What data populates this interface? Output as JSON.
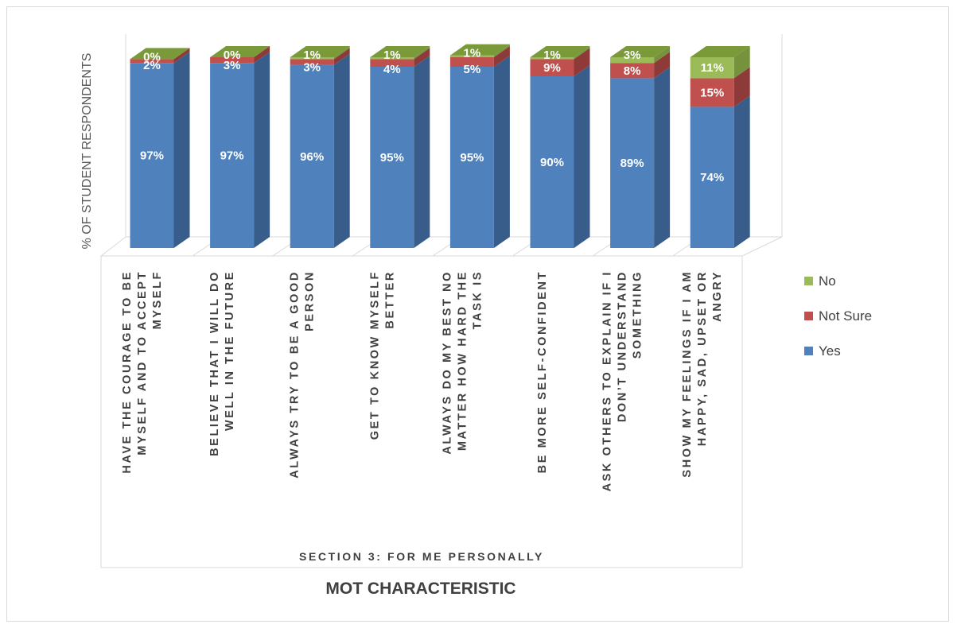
{
  "chart_data": {
    "type": "bar",
    "stacked": true,
    "three_d": true,
    "categories": [
      "HAVE THE COURAGE TO BE MYSELF AND TO ACCEPT MYSELF",
      "BELIEVE THAT I WILL DO WELL IN THE FUTURE",
      "ALWAYS TRY TO BE A GOOD PERSON",
      "GET TO KNOW MYSELF BETTER",
      "ALWAYS DO MY BEST NO MATTER HOW HARD THE TASK IS",
      "BE MORE SELF-CONFIDENT",
      "ASK OTHERS TO EXPLAIN IF I DON’T UNDERSTAND SOMETHING",
      "SHOW MY FEELINGS IF I AM HAPPY, SAD, UPSET OR ANGRY"
    ],
    "category_lines": [
      [
        "HAVE THE COURAGE TO BE",
        "MYSELF AND TO ACCEPT",
        "MYSELF"
      ],
      [
        "BELIEVE THAT I WILL DO",
        "WELL IN THE FUTURE"
      ],
      [
        "ALWAYS TRY TO BE A GOOD",
        "PERSON"
      ],
      [
        "GET TO KNOW MYSELF",
        "BETTER"
      ],
      [
        "ALWAYS DO MY BEST NO",
        "MATTER HOW HARD THE",
        "TASK IS"
      ],
      [
        "BE MORE SELF-CONFIDENT"
      ],
      [
        "ASK OTHERS TO EXPLAIN IF I",
        "DON’T UNDERSTAND",
        "SOMETHING"
      ],
      [
        "SHOW MY FEELINGS IF I AM",
        "HAPPY, SAD, UPSET OR",
        "ANGRY"
      ]
    ],
    "series": [
      {
        "name": "Yes",
        "color": "#4f81bd",
        "side_color": "#385d8a",
        "top_color": "#6f9bd1",
        "values": [
          97,
          97,
          96,
          95,
          95,
          90,
          89,
          74
        ],
        "labels": [
          "97%",
          "97%",
          "96%",
          "95%",
          "95%",
          "90%",
          "89%",
          "74%"
        ]
      },
      {
        "name": "Not Sure",
        "color": "#c0504d",
        "side_color": "#8e3a38",
        "top_color": "#d47572",
        "values": [
          2,
          3,
          3,
          4,
          5,
          9,
          8,
          15
        ],
        "labels": [
          "2%",
          "3%",
          "3%",
          "4%",
          "5%",
          "9%",
          "8%",
          "15%"
        ]
      },
      {
        "name": "No",
        "color": "#9bbb59",
        "side_color": "#76923c",
        "top_color": "#7a9a3a",
        "values": [
          0,
          0,
          1,
          1,
          1,
          1,
          3,
          11
        ],
        "labels": [
          "0%",
          "0%",
          "1%",
          "1%",
          "1%",
          "1%",
          "3%",
          "11%"
        ]
      }
    ],
    "ylabel": "% OF STUDENT RESPONDENTS",
    "group_label": "SECTION 3: FOR ME PERSONALLY",
    "xlabel": "MOT CHARACTERISTIC",
    "ylim": [
      0,
      100
    ],
    "grid": true,
    "legend": {
      "position": "right",
      "order": [
        "No",
        "Not Sure",
        "Yes"
      ]
    }
  }
}
